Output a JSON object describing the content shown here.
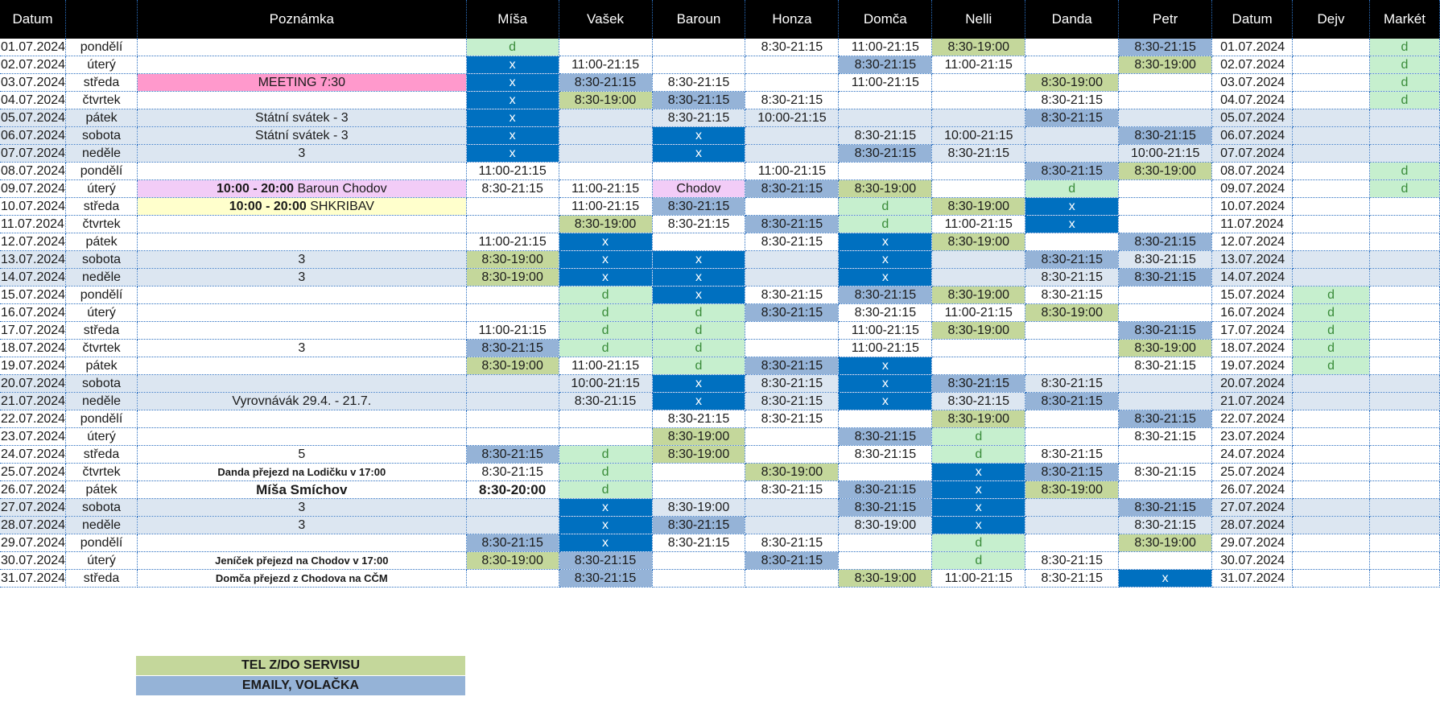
{
  "headers": [
    "Datum",
    "Poznámka",
    "Míša",
    "Vašek",
    "Baroun",
    "Honza",
    "Domča",
    "Nelli",
    "Danda",
    "Petr",
    "Datum",
    "Dejv",
    "Markét"
  ],
  "rows": [
    {
      "date": "01.07.2024",
      "day": "pondělí",
      "note": "",
      "misa": "d",
      "vasek": "",
      "baroun": "",
      "honza": "8:30-21:15",
      "domca": "11:00-21:15",
      "nelli": "8:30-19:00",
      "danda": "",
      "petr": "8:30-21:15",
      "date2": "01.07.2024",
      "dejv": "",
      "market": "d"
    },
    {
      "date": "02.07.2024",
      "day": "úterý",
      "note": "",
      "misa": "x",
      "vasek": "11:00-21:15",
      "baroun": "",
      "honza": "",
      "domca": "8:30-21:15",
      "nelli": "11:00-21:15",
      "danda": "",
      "petr": "8:30-19:00",
      "date2": "02.07.2024",
      "dejv": "",
      "market": "d"
    },
    {
      "date": "03.07.2024",
      "day": "středa",
      "note": "MEETING 7:30",
      "misa": "x",
      "vasek": "8:30-21:15",
      "baroun": "8:30-21:15",
      "honza": "",
      "domca": "11:00-21:15",
      "nelli": "",
      "danda": "8:30-19:00",
      "petr": "",
      "date2": "03.07.2024",
      "dejv": "",
      "market": "d"
    },
    {
      "date": "04.07.2024",
      "day": "čtvrtek",
      "note": "",
      "misa": "x",
      "vasek": "8:30-19:00",
      "baroun": "8:30-21:15",
      "honza": "8:30-21:15",
      "domca": "",
      "nelli": "",
      "danda": "8:30-21:15",
      "petr": "",
      "date2": "04.07.2024",
      "dejv": "",
      "market": "d"
    },
    {
      "date": "05.07.2024",
      "day": "pátek",
      "note": "Státní svátek - 3",
      "misa": "x",
      "vasek": "",
      "baroun": "8:30-21:15",
      "honza": "10:00-21:15",
      "domca": "",
      "nelli": "",
      "danda": "8:30-21:15",
      "petr": "",
      "date2": "05.07.2024",
      "dejv": "",
      "market": ""
    },
    {
      "date": "06.07.2024",
      "day": "sobota",
      "note": "Státní svátek - 3",
      "misa": "x",
      "vasek": "",
      "baroun": "x",
      "honza": "",
      "domca": "8:30-21:15",
      "nelli": "10:00-21:15",
      "danda": "",
      "petr": "8:30-21:15",
      "date2": "06.07.2024",
      "dejv": "",
      "market": ""
    },
    {
      "date": "07.07.2024",
      "day": "neděle",
      "note": "3",
      "misa": "x",
      "vasek": "",
      "baroun": "x",
      "honza": "",
      "domca": "8:30-21:15",
      "nelli": "8:30-21:15",
      "danda": "",
      "petr": "10:00-21:15",
      "date2": "07.07.2024",
      "dejv": "",
      "market": ""
    },
    {
      "date": "08.07.2024",
      "day": "pondělí",
      "note": "",
      "misa": "11:00-21:15",
      "vasek": "",
      "baroun": "",
      "honza": "11:00-21:15",
      "domca": "",
      "nelli": "",
      "danda": "8:30-21:15",
      "petr": "8:30-19:00",
      "date2": "08.07.2024",
      "dejv": "",
      "market": "d"
    },
    {
      "date": "09.07.2024",
      "day": "úterý",
      "note_bold": "10:00 - 20:00",
      "note": " Baroun Chodov",
      "misa": "8:30-21:15",
      "vasek": "11:00-21:15",
      "baroun": "Chodov",
      "honza": "8:30-21:15",
      "domca": "8:30-19:00",
      "nelli": "",
      "danda": "d",
      "petr": "",
      "date2": "09.07.2024",
      "dejv": "",
      "market": "d"
    },
    {
      "date": "10.07.2024",
      "day": "středa",
      "note_bold": "10:00 - 20:00",
      "note": " SHKRIBAV",
      "misa": "",
      "vasek": "11:00-21:15",
      "baroun": "8:30-21:15",
      "honza": "",
      "domca": "d",
      "nelli": "8:30-19:00",
      "danda": "x",
      "petr": "",
      "date2": "10.07.2024",
      "dejv": "",
      "market": ""
    },
    {
      "date": "11.07.2024",
      "day": "čtvrtek",
      "note": "",
      "misa": "",
      "vasek": "8:30-19:00",
      "baroun": "8:30-21:15",
      "honza": "8:30-21:15",
      "domca": "d",
      "nelli": "11:00-21:15",
      "danda": "x",
      "petr": "",
      "date2": "11.07.2024",
      "dejv": "",
      "market": ""
    },
    {
      "date": "12.07.2024",
      "day": "pátek",
      "note": "",
      "misa": "11:00-21:15",
      "vasek": "x",
      "baroun": "",
      "honza": "8:30-21:15",
      "domca": "x",
      "nelli": "8:30-19:00",
      "danda": "",
      "petr": "8:30-21:15",
      "date2": "12.07.2024",
      "dejv": "",
      "market": ""
    },
    {
      "date": "13.07.2024",
      "day": "sobota",
      "note": "3",
      "misa": "8:30-19:00",
      "vasek": "x",
      "baroun": "x",
      "honza": "",
      "domca": "x",
      "nelli": "",
      "danda": "8:30-21:15",
      "petr": "8:30-21:15",
      "date2": "13.07.2024",
      "dejv": "",
      "market": ""
    },
    {
      "date": "14.07.2024",
      "day": "neděle",
      "note": "3",
      "misa": "8:30-19:00",
      "vasek": "x",
      "baroun": "x",
      "honza": "",
      "domca": "x",
      "nelli": "",
      "danda": "8:30-21:15",
      "petr": "8:30-21:15",
      "date2": "14.07.2024",
      "dejv": "",
      "market": ""
    },
    {
      "date": "15.07.2024",
      "day": "pondělí",
      "note": "",
      "misa": "",
      "vasek": "d",
      "baroun": "x",
      "honza": "8:30-21:15",
      "domca": "8:30-21:15",
      "nelli": "8:30-19:00",
      "danda": "8:30-21:15",
      "petr": "",
      "date2": "15.07.2024",
      "dejv": "d",
      "market": ""
    },
    {
      "date": "16.07.2024",
      "day": "úterý",
      "note": "",
      "misa": "",
      "vasek": "d",
      "baroun": "d",
      "honza": "8:30-21:15",
      "domca": "8:30-21:15",
      "nelli": "11:00-21:15",
      "danda": "8:30-19:00",
      "petr": "",
      "date2": "16.07.2024",
      "dejv": "d",
      "market": ""
    },
    {
      "date": "17.07.2024",
      "day": "středa",
      "note": "",
      "misa": "11:00-21:15",
      "vasek": "d",
      "baroun": "d",
      "honza": "",
      "domca": "11:00-21:15",
      "nelli": "8:30-19:00",
      "danda": "",
      "petr": "8:30-21:15",
      "date2": "17.07.2024",
      "dejv": "d",
      "market": ""
    },
    {
      "date": "18.07.2024",
      "day": "čtvrtek",
      "note": "3",
      "misa": "8:30-21:15",
      "vasek": "d",
      "baroun": "d",
      "honza": "",
      "domca": "11:00-21:15",
      "nelli": "",
      "danda": "",
      "petr": "8:30-19:00",
      "date2": "18.07.2024",
      "dejv": "d",
      "market": ""
    },
    {
      "date": "19.07.2024",
      "day": "pátek",
      "note": "",
      "misa": "8:30-19:00",
      "vasek": "11:00-21:15",
      "baroun": "d",
      "honza": "8:30-21:15",
      "domca": "x",
      "nelli": "",
      "danda": "",
      "petr": "8:30-21:15",
      "date2": "19.07.2024",
      "dejv": "d",
      "market": ""
    },
    {
      "date": "20.07.2024",
      "day": "sobota",
      "note": "",
      "misa": "",
      "vasek": "10:00-21:15",
      "baroun": "x",
      "honza": "8:30-21:15",
      "domca": "x",
      "nelli": "8:30-21:15",
      "danda": "8:30-21:15",
      "petr": "",
      "date2": "20.07.2024",
      "dejv": "",
      "market": ""
    },
    {
      "date": "21.07.2024",
      "day": "neděle",
      "note": "Vyrovnávák 29.4. - 21.7.",
      "misa": "",
      "vasek": "8:30-21:15",
      "baroun": "x",
      "honza": "8:30-21:15",
      "domca": "x",
      "nelli": "8:30-21:15",
      "danda": "8:30-21:15",
      "petr": "",
      "date2": "21.07.2024",
      "dejv": "",
      "market": ""
    },
    {
      "date": "22.07.2024",
      "day": "pondělí",
      "note": "",
      "misa": "",
      "vasek": "",
      "baroun": "8:30-21:15",
      "honza": "8:30-21:15",
      "domca": "",
      "nelli": "8:30-19:00",
      "danda": "",
      "petr": "8:30-21:15",
      "date2": "22.07.2024",
      "dejv": "",
      "market": ""
    },
    {
      "date": "23.07.2024",
      "day": "úterý",
      "note": "",
      "misa": "",
      "vasek": "",
      "baroun": "8:30-19:00",
      "honza": "",
      "domca": "8:30-21:15",
      "nelli": "d",
      "danda": "",
      "petr": "8:30-21:15",
      "date2": "23.07.2024",
      "dejv": "",
      "market": ""
    },
    {
      "date": "24.07.2024",
      "day": "středa",
      "note": "5",
      "misa": "8:30-21:15",
      "vasek": "d",
      "baroun": "8:30-19:00",
      "honza": "",
      "domca": "8:30-21:15",
      "nelli": "d",
      "danda": "8:30-21:15",
      "petr": "",
      "date2": "24.07.2024",
      "dejv": "",
      "market": ""
    },
    {
      "date": "25.07.2024",
      "day": "čtvrtek",
      "note": "Danda přejezd na Lodičku v 17:00",
      "misa": "8:30-21:15",
      "vasek": "d",
      "baroun": "",
      "honza": "8:30-19:00",
      "domca": "",
      "nelli": "x",
      "danda": "8:30-21:15",
      "petr": "8:30-21:15",
      "date2": "25.07.2024",
      "dejv": "",
      "market": ""
    },
    {
      "date": "26.07.2024",
      "day": "pátek",
      "note": "Míša Smíchov",
      "misa": "8:30-20:00",
      "vasek": "d",
      "baroun": "",
      "honza": "8:30-21:15",
      "domca": "8:30-21:15",
      "nelli": "x",
      "danda": "8:30-19:00",
      "petr": "",
      "date2": "26.07.2024",
      "dejv": "",
      "market": ""
    },
    {
      "date": "27.07.2024",
      "day": "sobota",
      "note": "3",
      "misa": "",
      "vasek": "x",
      "baroun": "8:30-19:00",
      "honza": "",
      "domca": "8:30-21:15",
      "nelli": "x",
      "danda": "",
      "petr": "8:30-21:15",
      "date2": "27.07.2024",
      "dejv": "",
      "market": ""
    },
    {
      "date": "28.07.2024",
      "day": "neděle",
      "note": "3",
      "misa": "",
      "vasek": "x",
      "baroun": "8:30-21:15",
      "honza": "",
      "domca": "8:30-19:00",
      "nelli": "x",
      "danda": "",
      "petr": "8:30-21:15",
      "date2": "28.07.2024",
      "dejv": "",
      "market": ""
    },
    {
      "date": "29.07.2024",
      "day": "pondělí",
      "note": "",
      "misa": "8:30-21:15",
      "vasek": "x",
      "baroun": "8:30-21:15",
      "honza": "8:30-21:15",
      "domca": "",
      "nelli": "d",
      "danda": "",
      "petr": "8:30-19:00",
      "date2": "29.07.2024",
      "dejv": "",
      "market": ""
    },
    {
      "date": "30.07.2024",
      "day": "úterý",
      "note": "Jeníček přejezd na Chodov v 17:00",
      "misa": "8:30-19:00",
      "vasek": "8:30-21:15",
      "baroun": "",
      "honza": "8:30-21:15",
      "domca": "",
      "nelli": "d",
      "danda": "8:30-21:15",
      "petr": "",
      "date2": "30.07.2024",
      "dejv": "",
      "market": ""
    },
    {
      "date": "31.07.2024",
      "day": "středa",
      "note": "Domča přejezd z Chodova na CČM",
      "misa": "",
      "vasek": "8:30-21:15",
      "baroun": "",
      "honza": "",
      "domca": "8:30-19:00",
      "nelli": "11:00-21:15",
      "danda": "8:30-21:15",
      "petr": "x",
      "date2": "31.07.2024",
      "dejv": "",
      "market": ""
    }
  ],
  "legend": [
    "TEL Z/DO SERVISU",
    "EMAILY, VOLAČKA"
  ],
  "colors": {
    "header_bg": "#000000",
    "weekend": "#dce6f1",
    "dovolena": "#c6efce",
    "tel": "#c4d79b",
    "email": "#95b3d7",
    "volno": "#0070c0",
    "meeting": "#ff99cc",
    "chodov": "#f2ccf7",
    "shkribav": "#ffffcc"
  }
}
